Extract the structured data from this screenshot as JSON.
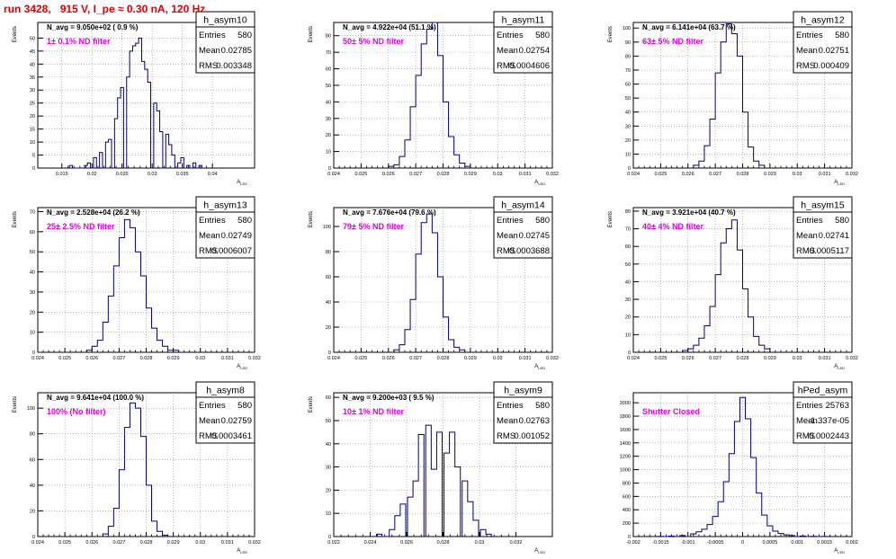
{
  "run_title": "run 3428,   915 V, I_pe ≈ 0.30 nA, 120 Hz",
  "colors": {
    "title": "#e00000",
    "histogram": "#00007a",
    "annotation": "#e000e0",
    "grid": "#888888"
  },
  "stats_labels": {
    "entries": "Entries",
    "mean": "Mean",
    "rms": "RMS"
  },
  "chart_data": [
    {
      "type": "histogram",
      "name": "h_asym10",
      "n_avg": "N_avg = 9.050e+02 ( 0.9 %)",
      "annotation": "1± 0.1% ND filter",
      "entries": "580",
      "mean": "0.02785",
      "rms": "0.003348",
      "ylabel": "Events",
      "xlabel": "A_LED",
      "grid": true,
      "xlim": [
        0.011,
        0.047
      ],
      "ylim": [
        0,
        56
      ],
      "xticks": [
        "0.015",
        "0.02",
        "0.025",
        "0.03",
        "0.035",
        "0.04"
      ],
      "yticks": [
        0,
        5,
        10,
        15,
        20,
        25,
        30,
        35,
        40,
        45,
        50
      ],
      "bins": {
        "x": [
          0.0165,
          0.018,
          0.019,
          0.0195,
          0.0205,
          0.0215,
          0.0225,
          0.023,
          0.024,
          0.0245,
          0.025,
          0.026,
          0.0265,
          0.027,
          0.0275,
          0.028,
          0.0285,
          0.029,
          0.0295,
          0.0305,
          0.031,
          0.0315,
          0.0325,
          0.033,
          0.0335,
          0.0345,
          0.035,
          0.036,
          0.037,
          0.038
        ],
        "y": [
          1,
          0,
          1,
          2,
          4,
          6,
          10,
          11,
          19,
          27,
          31,
          35,
          45,
          47,
          48,
          50,
          41,
          38,
          33,
          25,
          22,
          14,
          13,
          9,
          5,
          2,
          4,
          1,
          2,
          1
        ]
      }
    },
    {
      "type": "histogram",
      "name": "h_asym11",
      "n_avg": "N_avg = 4.922e+04 (51.1 %)",
      "annotation": "50± 5% ND filter",
      "entries": "580",
      "mean": "0.02754",
      "rms": "0.0004606",
      "ylabel": "Events",
      "xlabel": "A_LED",
      "grid": true,
      "xlim": [
        0.024,
        0.032
      ],
      "ylim": [
        0,
        88
      ],
      "xticks": [
        "0.024",
        "0.025",
        "0.026",
        "0.027",
        "0.028",
        "0.029",
        "0.03",
        "0.031",
        "0.032"
      ],
      "yticks": [
        0,
        10,
        20,
        30,
        40,
        50,
        60,
        70,
        80
      ],
      "bins": {
        "x": [
          0.0261,
          0.0263,
          0.0265,
          0.0267,
          0.0269,
          0.0271,
          0.0273,
          0.0275,
          0.0277,
          0.0279,
          0.0281,
          0.0283,
          0.0285,
          0.0287,
          0.0289
        ],
        "y": [
          1,
          2,
          7,
          17,
          37,
          56,
          75,
          84,
          88,
          68,
          40,
          19,
          8,
          3,
          1
        ]
      }
    },
    {
      "type": "histogram",
      "name": "h_asym12",
      "n_avg": "N_avg = 6.141e+04 (63.7 %)",
      "annotation": "63± 5% ND filter",
      "entries": "580",
      "mean": "0.02751",
      "rms": "0.000409",
      "ylabel": "Events",
      "xlabel": "A_LED",
      "grid": true,
      "xlim": [
        0.024,
        0.032
      ],
      "ylim": [
        0,
        104
      ],
      "xticks": [
        "0.024",
        "0.025",
        "0.026",
        "0.027",
        "0.028",
        "0.029",
        "0.03",
        "0.031",
        "0.032"
      ],
      "yticks": [
        0,
        10,
        20,
        30,
        40,
        50,
        60,
        70,
        80,
        90,
        100
      ],
      "bins": {
        "x": [
          0.0263,
          0.0265,
          0.0267,
          0.0269,
          0.0271,
          0.0273,
          0.0275,
          0.0277,
          0.0279,
          0.0281,
          0.0283,
          0.0285,
          0.0287
        ],
        "y": [
          2,
          5,
          16,
          35,
          68,
          90,
          103,
          96,
          80,
          40,
          15,
          5,
          2
        ]
      }
    },
    {
      "type": "histogram",
      "name": "h_asym13",
      "n_avg": "N_avg = 2.528e+04 (26.2 %)",
      "annotation": "25± 2.5% ND filter",
      "entries": "580",
      "mean": "0.02749",
      "rms": "0.0006007",
      "ylabel": "Events",
      "xlabel": "A_LED",
      "grid": true,
      "xlim": [
        0.024,
        0.032
      ],
      "ylim": [
        0,
        72
      ],
      "xticks": [
        "0.024",
        "0.025",
        "0.026",
        "0.027",
        "0.028",
        "0.029",
        "0.03",
        "0.031",
        "0.032"
      ],
      "yticks": [
        0,
        10,
        20,
        30,
        40,
        50,
        60,
        70
      ],
      "bins": {
        "x": [
          0.0259,
          0.0261,
          0.0263,
          0.0265,
          0.0267,
          0.0269,
          0.0271,
          0.0273,
          0.0275,
          0.0277,
          0.0279,
          0.0281,
          0.0283,
          0.0285,
          0.0287,
          0.0289,
          0.0291
        ],
        "y": [
          1,
          3,
          6,
          15,
          28,
          43,
          57,
          66,
          62,
          50,
          38,
          22,
          12,
          6,
          3,
          1,
          1
        ]
      }
    },
    {
      "type": "histogram",
      "name": "h_asym14",
      "n_avg": "N_avg = 7.676e+04 (79.6 %)",
      "annotation": "79± 5% ND filter",
      "entries": "580",
      "mean": "0.02745",
      "rms": "0.0003688",
      "ylabel": "Events",
      "xlabel": "A_LED",
      "grid": true,
      "xlim": [
        0.024,
        0.032
      ],
      "ylim": [
        0,
        115
      ],
      "xticks": [
        "0.024",
        "0.025",
        "0.026",
        "0.027",
        "0.028",
        "0.029",
        "0.03",
        "0.031",
        "0.032"
      ],
      "yticks": [
        0,
        20,
        40,
        60,
        80,
        100
      ],
      "bins": {
        "x": [
          0.0263,
          0.0265,
          0.0267,
          0.0269,
          0.0271,
          0.0273,
          0.0275,
          0.0277,
          0.0279,
          0.0281,
          0.0283,
          0.0285,
          0.0287
        ],
        "y": [
          2,
          6,
          18,
          42,
          78,
          103,
          110,
          95,
          60,
          28,
          10,
          4,
          2
        ]
      }
    },
    {
      "type": "histogram",
      "name": "h_asym15",
      "n_avg": "N_avg = 3.921e+04 (40.7 %)",
      "annotation": "40± 4% ND filter",
      "entries": "580",
      "mean": "0.02741",
      "rms": "0.0005117",
      "ylabel": "Events",
      "xlabel": "A_LED",
      "grid": true,
      "xlim": [
        0.024,
        0.032
      ],
      "ylim": [
        0,
        82
      ],
      "xticks": [
        "0.024",
        "0.025",
        "0.026",
        "0.027",
        "0.028",
        "0.029",
        "0.03",
        "0.031",
        "0.032"
      ],
      "yticks": [
        0,
        10,
        20,
        30,
        40,
        50,
        60,
        70,
        80
      ],
      "bins": {
        "x": [
          0.0259,
          0.0261,
          0.0263,
          0.0265,
          0.0267,
          0.0269,
          0.0271,
          0.0273,
          0.0275,
          0.0277,
          0.0279,
          0.0281,
          0.0283,
          0.0285,
          0.0287,
          0.0289
        ],
        "y": [
          1,
          2,
          4,
          8,
          15,
          26,
          44,
          62,
          70,
          75,
          58,
          36,
          20,
          9,
          4,
          2
        ]
      }
    },
    {
      "type": "histogram",
      "name": "h_asym8",
      "n_avg": "N_avg = 9.641e+04 (100.0 %)",
      "annotation": "100% (No filter)",
      "entries": "580",
      "mean": "0.02759",
      "rms": "0.0003461",
      "ylabel": "Events",
      "xlabel": "A_LED",
      "grid": true,
      "xlim": [
        0.024,
        0.032
      ],
      "ylim": [
        0,
        112
      ],
      "xticks": [
        "0.024",
        "0.025",
        "0.026",
        "0.027",
        "0.028",
        "0.029",
        "0.03",
        "0.031",
        "0.032"
      ],
      "yticks": [
        0,
        20,
        40,
        60,
        80,
        100
      ],
      "bins": {
        "x": [
          0.0265,
          0.0267,
          0.0269,
          0.0271,
          0.0273,
          0.0275,
          0.0277,
          0.0279,
          0.0281,
          0.0283,
          0.0285,
          0.0287
        ],
        "y": [
          2,
          8,
          22,
          52,
          85,
          104,
          100,
          78,
          40,
          12,
          4,
          1
        ]
      }
    },
    {
      "type": "histogram",
      "name": "h_asym9",
      "n_avg": "N_avg = 9.200e+03 ( 9.5 %)",
      "annotation": "10± 1% ND filter",
      "entries": "580",
      "mean": "0.02763",
      "rms": "0.001052",
      "ylabel": "Events",
      "xlabel": "A_LED",
      "grid": true,
      "xlim": [
        0.022,
        0.034
      ],
      "ylim": [
        0,
        62
      ],
      "xticks": [
        "0.022",
        "0.024",
        "0.026",
        "0.028",
        "0.03",
        "0.032"
      ],
      "yticks": [
        0,
        10,
        20,
        30,
        40,
        50,
        60
      ],
      "bins": {
        "x": [
          0.0245,
          0.0252,
          0.0255,
          0.0258,
          0.0262,
          0.0265,
          0.0268,
          0.0272,
          0.0275,
          0.0278,
          0.0282,
          0.0285,
          0.0288,
          0.0292,
          0.0295,
          0.0298,
          0.0302,
          0.0305
        ],
        "y": [
          1,
          3,
          9,
          14,
          17,
          24,
          44,
          48,
          29,
          45,
          36,
          45,
          30,
          24,
          15,
          7,
          3,
          1
        ]
      }
    },
    {
      "type": "histogram",
      "name": "hPed_asym",
      "n_avg": "",
      "annotation": "Shutter Closed",
      "entries": "25763",
      "mean": "-1.337e-05",
      "rms": "0.0002443",
      "ylabel": "",
      "xlabel": "A_LED",
      "grid": true,
      "xlim": [
        -0.002,
        0.002
      ],
      "ylim": [
        0,
        2150
      ],
      "xticks": [
        "-0.002",
        "-0.0015",
        "-0.001",
        "-0.0005",
        "0",
        "0.0005",
        "0.001",
        "0.0015",
        "0.002"
      ],
      "yticks": [
        0,
        200,
        400,
        600,
        800,
        1000,
        1200,
        1400,
        1600,
        1800,
        2000
      ],
      "bins": {
        "x": [
          -0.0015,
          -0.0013,
          -0.0011,
          -0.0009,
          -0.0008,
          -0.0007,
          -0.0006,
          -0.0005,
          -0.0004,
          -0.0003,
          -0.0002,
          -0.0001,
          0.0,
          0.0001,
          0.0002,
          0.0003,
          0.0004,
          0.0005,
          0.0006,
          0.0007,
          0.0008,
          0.0009,
          0.0011,
          0.0013,
          0.0015
        ],
        "y": [
          3,
          6,
          15,
          40,
          70,
          110,
          180,
          300,
          520,
          820,
          1240,
          1720,
          2080,
          1760,
          1180,
          650,
          320,
          160,
          80,
          45,
          25,
          15,
          8,
          4,
          2
        ]
      }
    }
  ]
}
